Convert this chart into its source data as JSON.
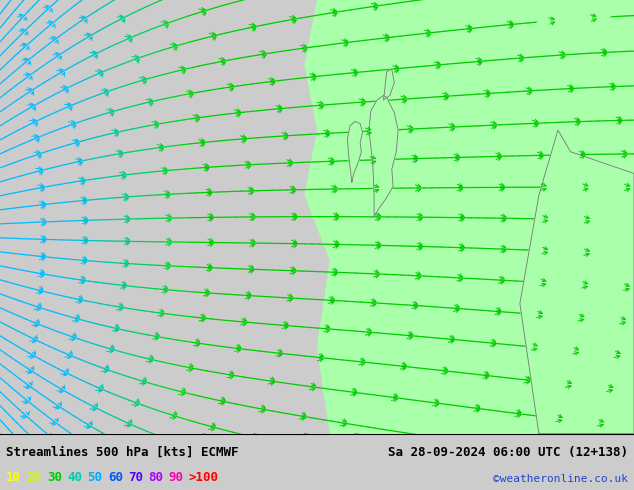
{
  "title_left": "Streamlines 500 hPa [kts] ECMWF",
  "title_right": "Sa 28-09-2024 06:00 UTC (12+138)",
  "credit": "©weatheronline.co.uk",
  "legend_values": [
    "10",
    "20",
    "30",
    "40",
    "50",
    "60",
    "70",
    "80",
    "90",
    ">100"
  ],
  "legend_colors": [
    "#ffff00",
    "#c8ff00",
    "#00cc00",
    "#00ccaa",
    "#00aaff",
    "#0055ff",
    "#5500ff",
    "#aa00ff",
    "#ff00aa",
    "#ff0000"
  ],
  "bg_color": "#cccccc",
  "ocean_color": "#cccccc",
  "land_color": "#aaffaa",
  "streamline_color_slow": "#00bbff",
  "streamline_color_fast": "#00cc00",
  "fig_width": 6.34,
  "fig_height": 4.9,
  "dpi": 100,
  "bottom_bar_color": "#ffffff",
  "title_fontsize": 9,
  "legend_fontsize": 9
}
